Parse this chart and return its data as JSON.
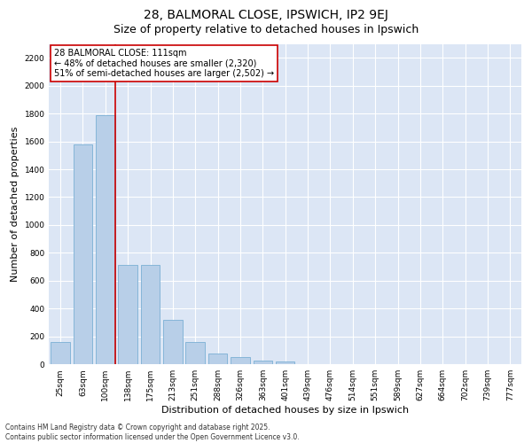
{
  "title_line1": "28, BALMORAL CLOSE, IPSWICH, IP2 9EJ",
  "title_line2": "Size of property relative to detached houses in Ipswich",
  "xlabel": "Distribution of detached houses by size in Ipswich",
  "ylabel": "Number of detached properties",
  "categories": [
    "25sqm",
    "63sqm",
    "100sqm",
    "138sqm",
    "175sqm",
    "213sqm",
    "251sqm",
    "288sqm",
    "326sqm",
    "363sqm",
    "401sqm",
    "439sqm",
    "476sqm",
    "514sqm",
    "551sqm",
    "589sqm",
    "627sqm",
    "664sqm",
    "702sqm",
    "739sqm",
    "777sqm"
  ],
  "values": [
    160,
    1580,
    1790,
    715,
    715,
    320,
    160,
    80,
    50,
    28,
    18,
    0,
    0,
    0,
    0,
    0,
    0,
    0,
    0,
    0,
    0
  ],
  "bar_color": "#b8cfe8",
  "bar_edge_color": "#7bafd4",
  "fig_bg_color": "#ffffff",
  "ax_bg_color": "#dce6f5",
  "grid_color": "#ffffff",
  "ylim": [
    0,
    2300
  ],
  "yticks": [
    0,
    200,
    400,
    600,
    800,
    1000,
    1200,
    1400,
    1600,
    1800,
    2000,
    2200
  ],
  "property_bin_index": 2,
  "vline_color": "#cc0000",
  "annotation_line1": "28 BALMORAL CLOSE: 111sqm",
  "annotation_line2": "← 48% of detached houses are smaller (2,320)",
  "annotation_line3": "51% of semi-detached houses are larger (2,502) →",
  "annotation_box_color": "#ffffff",
  "annotation_box_edge": "#cc0000",
  "footer_line1": "Contains HM Land Registry data © Crown copyright and database right 2025.",
  "footer_line2": "Contains public sector information licensed under the Open Government Licence v3.0.",
  "title_fontsize": 10,
  "subtitle_fontsize": 9,
  "axis_label_fontsize": 8,
  "tick_fontsize": 6.5,
  "annotation_fontsize": 7,
  "footer_fontsize": 5.5
}
